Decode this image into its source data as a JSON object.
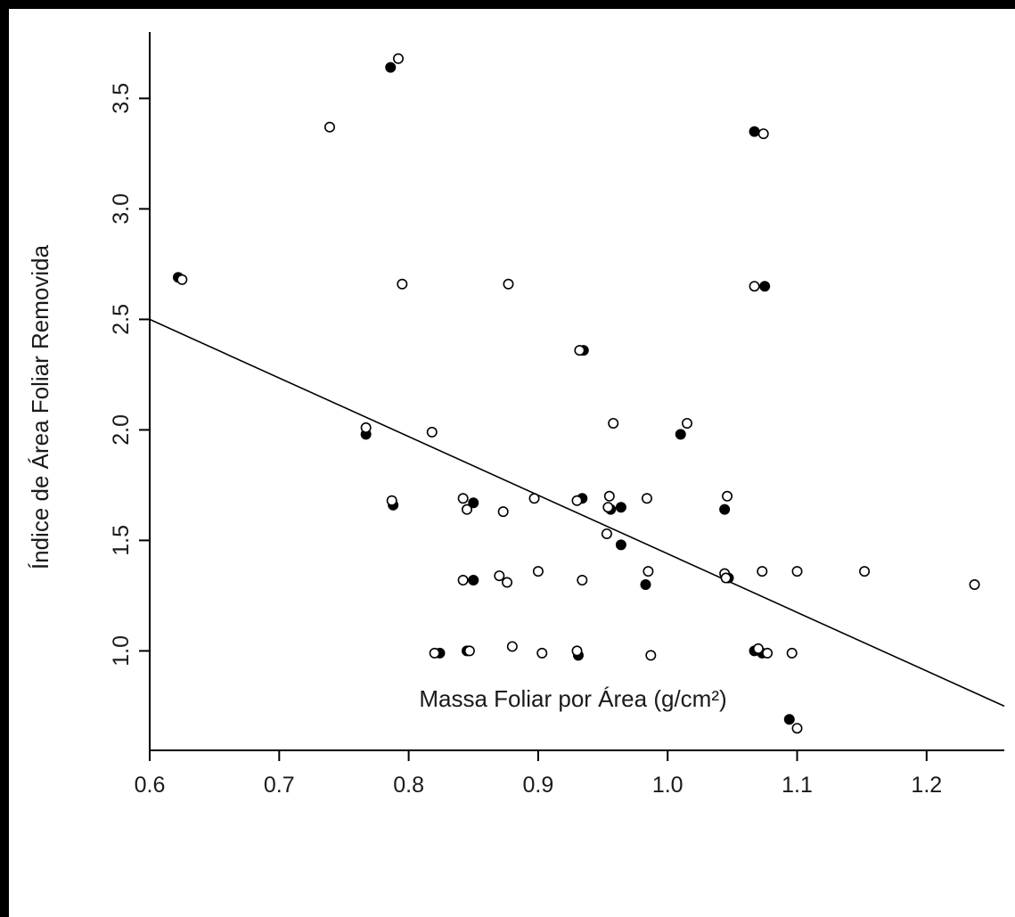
{
  "chart_data": {
    "type": "scatter",
    "title": "",
    "xlabel": "Massa Foliar por Área (g/cm²)",
    "ylabel": "Índice de Área Foliar Removida",
    "xlim": [
      0.6,
      1.26
    ],
    "ylim": [
      0.55,
      3.8
    ],
    "x_ticks": [
      {
        "value": 0.6,
        "label": "0.6"
      },
      {
        "value": 0.7,
        "label": "0.7"
      },
      {
        "value": 0.8,
        "label": "0.8"
      },
      {
        "value": 0.9,
        "label": "0.9"
      },
      {
        "value": 1.0,
        "label": "1.0"
      },
      {
        "value": 1.1,
        "label": "1.1"
      },
      {
        "value": 1.2,
        "label": "1.2"
      }
    ],
    "y_ticks": [
      {
        "value": 1.0,
        "label": "1.0"
      },
      {
        "value": 1.5,
        "label": "1.5"
      },
      {
        "value": 2.0,
        "label": "2.0"
      },
      {
        "value": 2.5,
        "label": "2.5"
      },
      {
        "value": 3.0,
        "label": "3.0"
      },
      {
        "value": 3.5,
        "label": "3.5"
      }
    ],
    "grid": false,
    "colors": {
      "marker": "#000000",
      "line": "#000000",
      "axis": "#000000"
    },
    "series": [
      {
        "marker": "filled-circle",
        "points": [
          [
            0.622,
            2.69
          ],
          [
            0.786,
            3.64
          ],
          [
            0.767,
            1.98
          ],
          [
            0.788,
            1.66
          ],
          [
            0.824,
            0.99
          ],
          [
            0.845,
            1.0
          ],
          [
            0.85,
            1.32
          ],
          [
            0.85,
            1.67
          ],
          [
            0.931,
            0.98
          ],
          [
            0.935,
            2.36
          ],
          [
            0.934,
            1.69
          ],
          [
            0.956,
            1.64
          ],
          [
            0.964,
            1.65
          ],
          [
            0.964,
            1.48
          ],
          [
            0.983,
            1.3
          ],
          [
            1.01,
            1.98
          ],
          [
            1.044,
            1.64
          ],
          [
            1.047,
            1.33
          ],
          [
            1.067,
            3.35
          ],
          [
            1.075,
            2.65
          ],
          [
            1.067,
            1.0
          ],
          [
            1.073,
            0.99
          ],
          [
            1.094,
            0.69
          ]
        ]
      },
      {
        "marker": "open-circle",
        "points": [
          [
            0.625,
            2.68
          ],
          [
            0.739,
            3.37
          ],
          [
            0.792,
            3.68
          ],
          [
            0.795,
            2.66
          ],
          [
            0.767,
            2.01
          ],
          [
            0.787,
            1.68
          ],
          [
            0.818,
            1.99
          ],
          [
            0.82,
            0.99
          ],
          [
            0.842,
            1.69
          ],
          [
            0.842,
            1.32
          ],
          [
            0.845,
            1.64
          ],
          [
            0.847,
            1.0
          ],
          [
            0.87,
            1.34
          ],
          [
            0.873,
            1.63
          ],
          [
            0.876,
            1.31
          ],
          [
            0.877,
            2.66
          ],
          [
            0.88,
            1.02
          ],
          [
            0.897,
            1.69
          ],
          [
            0.9,
            1.36
          ],
          [
            0.903,
            0.99
          ],
          [
            0.93,
            1.0
          ],
          [
            0.93,
            1.68
          ],
          [
            0.932,
            2.36
          ],
          [
            0.934,
            1.32
          ],
          [
            0.953,
            1.53
          ],
          [
            0.954,
            1.65
          ],
          [
            0.955,
            1.7
          ],
          [
            0.958,
            2.03
          ],
          [
            0.984,
            1.69
          ],
          [
            0.985,
            1.36
          ],
          [
            0.987,
            0.98
          ],
          [
            1.015,
            2.03
          ],
          [
            1.044,
            1.35
          ],
          [
            1.045,
            1.33
          ],
          [
            1.046,
            1.7
          ],
          [
            1.067,
            2.65
          ],
          [
            1.074,
            3.34
          ],
          [
            1.07,
            1.01
          ],
          [
            1.073,
            1.36
          ],
          [
            1.077,
            0.99
          ],
          [
            1.1,
            1.36
          ],
          [
            1.096,
            0.99
          ],
          [
            1.1,
            0.65
          ],
          [
            1.152,
            1.36
          ],
          [
            1.237,
            1.3
          ]
        ]
      }
    ],
    "fit_line": {
      "x": [
        0.6,
        1.26
      ],
      "y": [
        2.5,
        0.75
      ]
    }
  }
}
